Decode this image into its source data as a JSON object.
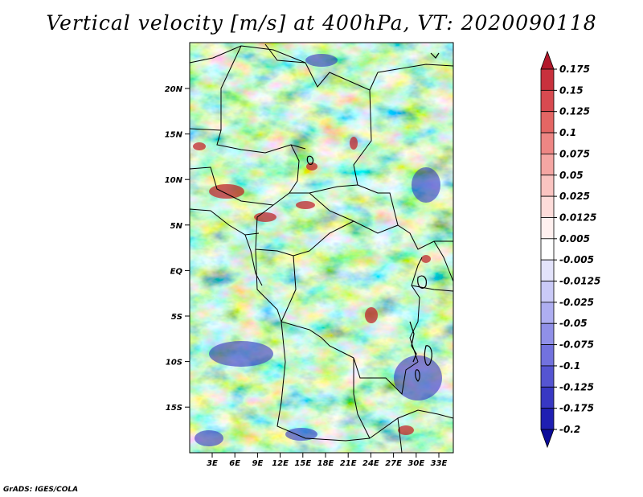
{
  "title": "Vertical velocity [m/s] at 400hPa, VT: 2020090118",
  "credit": "GrADS: IGES/COLA",
  "map": {
    "lat_labels": [
      "20N",
      "15N",
      "10N",
      "5N",
      "EQ",
      "5S",
      "10S",
      "15S"
    ],
    "lon_labels": [
      "3E",
      "6E",
      "9E",
      "12E",
      "15E",
      "18E",
      "21E",
      "24E",
      "27E",
      "30E",
      "33E"
    ]
  },
  "colorbar": {
    "levels": [
      "0.175",
      "0.15",
      "0.125",
      "0.1",
      "0.075",
      "0.05",
      "0.025",
      "0.0125",
      "0.005",
      "-0.005",
      "-0.0125",
      "-0.025",
      "-0.05",
      "-0.075",
      "-0.1",
      "-0.125",
      "-0.175",
      "-0.2"
    ],
    "colors": [
      "#b2182b",
      "#c8313d",
      "#d84a50",
      "#e46664",
      "#ee8684",
      "#f5a6a3",
      "#fac4c1",
      "#fddcda",
      "#fff0ef",
      "#ffffff",
      "#e3e3fb",
      "#cacaf7",
      "#aeaef1",
      "#9090e8",
      "#7272de",
      "#5555d2",
      "#3838c3",
      "#1f1fb2",
      "#0b0b9a"
    ]
  }
}
